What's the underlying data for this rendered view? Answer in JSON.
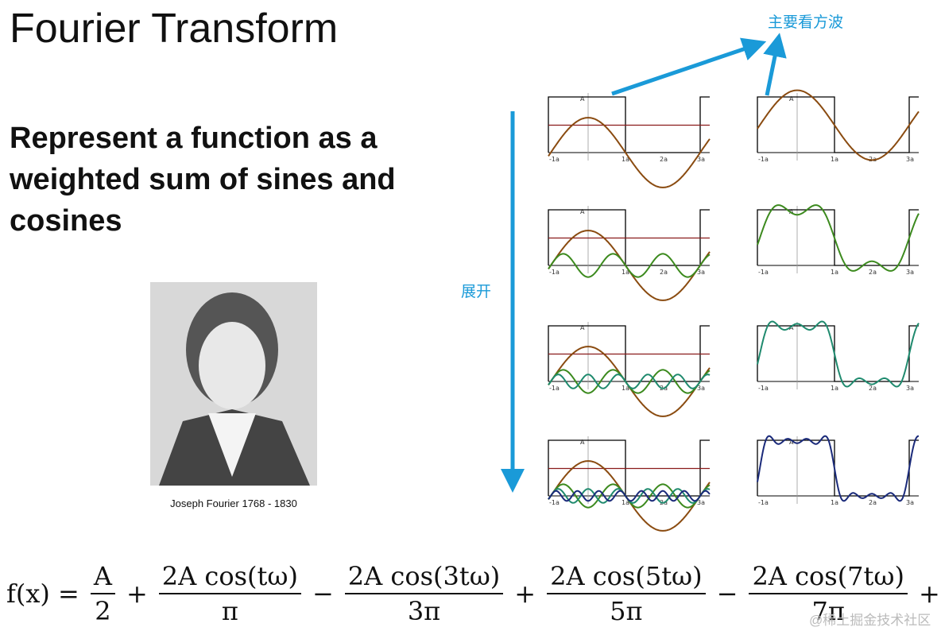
{
  "slide": {
    "title": "Fourier Transform",
    "body": "Represent a function as a weighted sum of sines and cosines",
    "caption": "Joseph Fourier 1768 - 1830"
  },
  "annotations": {
    "top": "主要看方波",
    "side": "展开"
  },
  "plot_labels": {
    "amplitude": "A",
    "x": [
      "-1a",
      "1a",
      "2a",
      "3a"
    ]
  },
  "formula": {
    "lhs": "f(x) =",
    "terms": [
      {
        "num": "A",
        "den": "2"
      },
      {
        "op": "+",
        "num": "2A cos(tω)",
        "den": "π"
      },
      {
        "op": "−",
        "num": "2A cos(3tω)",
        "den": "3π"
      },
      {
        "op": "+",
        "num": "2A cos(5tω)",
        "den": "5π"
      },
      {
        "op": "−",
        "num": "2A cos(7tω)",
        "den": "7π"
      }
    ],
    "tail": "+ ···"
  },
  "watermark": "@稀土掘金技术社区"
}
